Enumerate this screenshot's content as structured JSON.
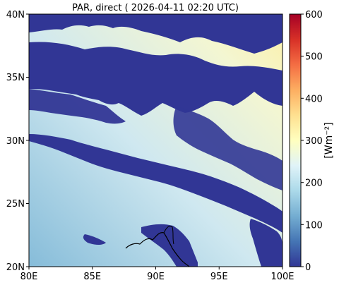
{
  "title": "PAR, direct ( 2026-04-11 02:20 UTC)",
  "map": {
    "x_ticks": [
      "80E",
      "85E",
      "90E",
      "95E",
      "100E"
    ],
    "y_ticks": [
      "40N",
      "35N",
      "30N",
      "25N",
      "20N"
    ],
    "lon_range": [
      80,
      100
    ],
    "lat_range": [
      20,
      40
    ],
    "cloud_color": "#313695",
    "clear_sky_gradient_low": "#7db6d6",
    "clear_sky_gradient_high": "#fdf2a8",
    "coastline_color": "#000000"
  },
  "colorbar": {
    "label": "[Wm⁻²]",
    "ticks": [
      "600",
      "500",
      "400",
      "300",
      "200",
      "100",
      "0"
    ],
    "range": [
      0,
      600
    ],
    "colormap": "RdYlBu_r",
    "stops": [
      "#313695",
      "#4575b4",
      "#74add1",
      "#abd9e9",
      "#e0f3f8",
      "#ffffbf",
      "#fee090",
      "#fdae61",
      "#f46d43",
      "#d73027",
      "#a50026"
    ]
  }
}
